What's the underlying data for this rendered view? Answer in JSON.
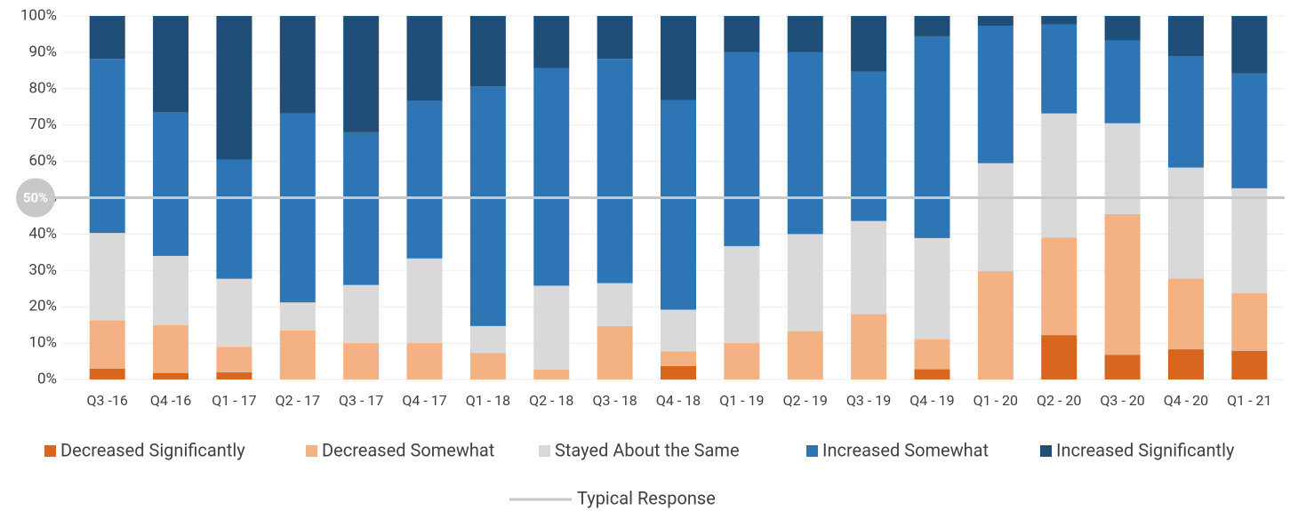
{
  "chart_data": {
    "type": "stacked_bar_100",
    "categories": [
      "Q3 -16",
      "Q4 -16",
      "Q1 - 17",
      "Q2 - 17",
      "Q3 - 17",
      "Q4 - 17",
      "Q1 - 18",
      "Q2 - 18",
      "Q3 - 18",
      "Q4 - 18",
      "Q1 - 19",
      "Q2 - 19",
      "Q3 - 19",
      "Q4 - 19",
      "Q1 - 20",
      "Q2 - 20",
      "Q3 - 20",
      "Q4 - 20",
      "Q1 - 21"
    ],
    "series": [
      {
        "name": "Decreased Significantly",
        "color": "#d9661f",
        "values": [
          3,
          1.8,
          2,
          0,
          0,
          0,
          0,
          0,
          0,
          3.7,
          0,
          0,
          0,
          2.8,
          0,
          12.2,
          6.8,
          8.3,
          7.9
        ]
      },
      {
        "name": "Decreased Somewhat",
        "color": "#f4b183",
        "values": [
          13.3,
          13.2,
          7,
          13.5,
          10,
          10,
          7.3,
          2.7,
          14.7,
          4,
          10,
          13.3,
          18,
          8.3,
          29.8,
          26.8,
          38.7,
          19.5,
          15.8
        ]
      },
      {
        "name": "Stayed About the Same",
        "color": "#d9d9d9",
        "values": [
          24,
          19,
          18.7,
          7.7,
          16,
          23.3,
          7.4,
          23.1,
          11.8,
          11.5,
          26.7,
          26.7,
          25.6,
          27.8,
          29.7,
          34.2,
          25,
          30.5,
          28.9
        ]
      },
      {
        "name": "Increased Somewhat",
        "color": "#2e75b6",
        "values": [
          47.9,
          39.5,
          32.8,
          52,
          42,
          43.3,
          65.9,
          59.9,
          61.7,
          57.7,
          53.4,
          50.1,
          41.1,
          55.5,
          37.8,
          24.4,
          22.7,
          30.6,
          31.6
        ]
      },
      {
        "name": "Increased Significantly",
        "color": "#1f4e79",
        "values": [
          11.8,
          26.5,
          39.5,
          26.8,
          32,
          23.4,
          19.4,
          14.3,
          11.8,
          23.1,
          9.9,
          9.9,
          15.3,
          5.6,
          2.7,
          2.4,
          6.8,
          11.1,
          15.8
        ]
      }
    ],
    "ylim": [
      0,
      100
    ],
    "yticks": [
      {
        "value": 0,
        "label": "0%"
      },
      {
        "value": 10,
        "label": "10%"
      },
      {
        "value": 20,
        "label": "20%"
      },
      {
        "value": 30,
        "label": "30%"
      },
      {
        "value": 40,
        "label": "40%"
      },
      {
        "value": 50,
        "label": "50%"
      },
      {
        "value": 60,
        "label": "60%"
      },
      {
        "value": 70,
        "label": "70%"
      },
      {
        "value": 80,
        "label": "80%"
      },
      {
        "value": 90,
        "label": "90%"
      },
      {
        "value": 100,
        "label": "100%"
      }
    ],
    "grid": true,
    "reference_line": {
      "name": "Typical Response",
      "value": 50,
      "label": "50%",
      "color": "#c8c8c8"
    },
    "legend": "bottom"
  }
}
